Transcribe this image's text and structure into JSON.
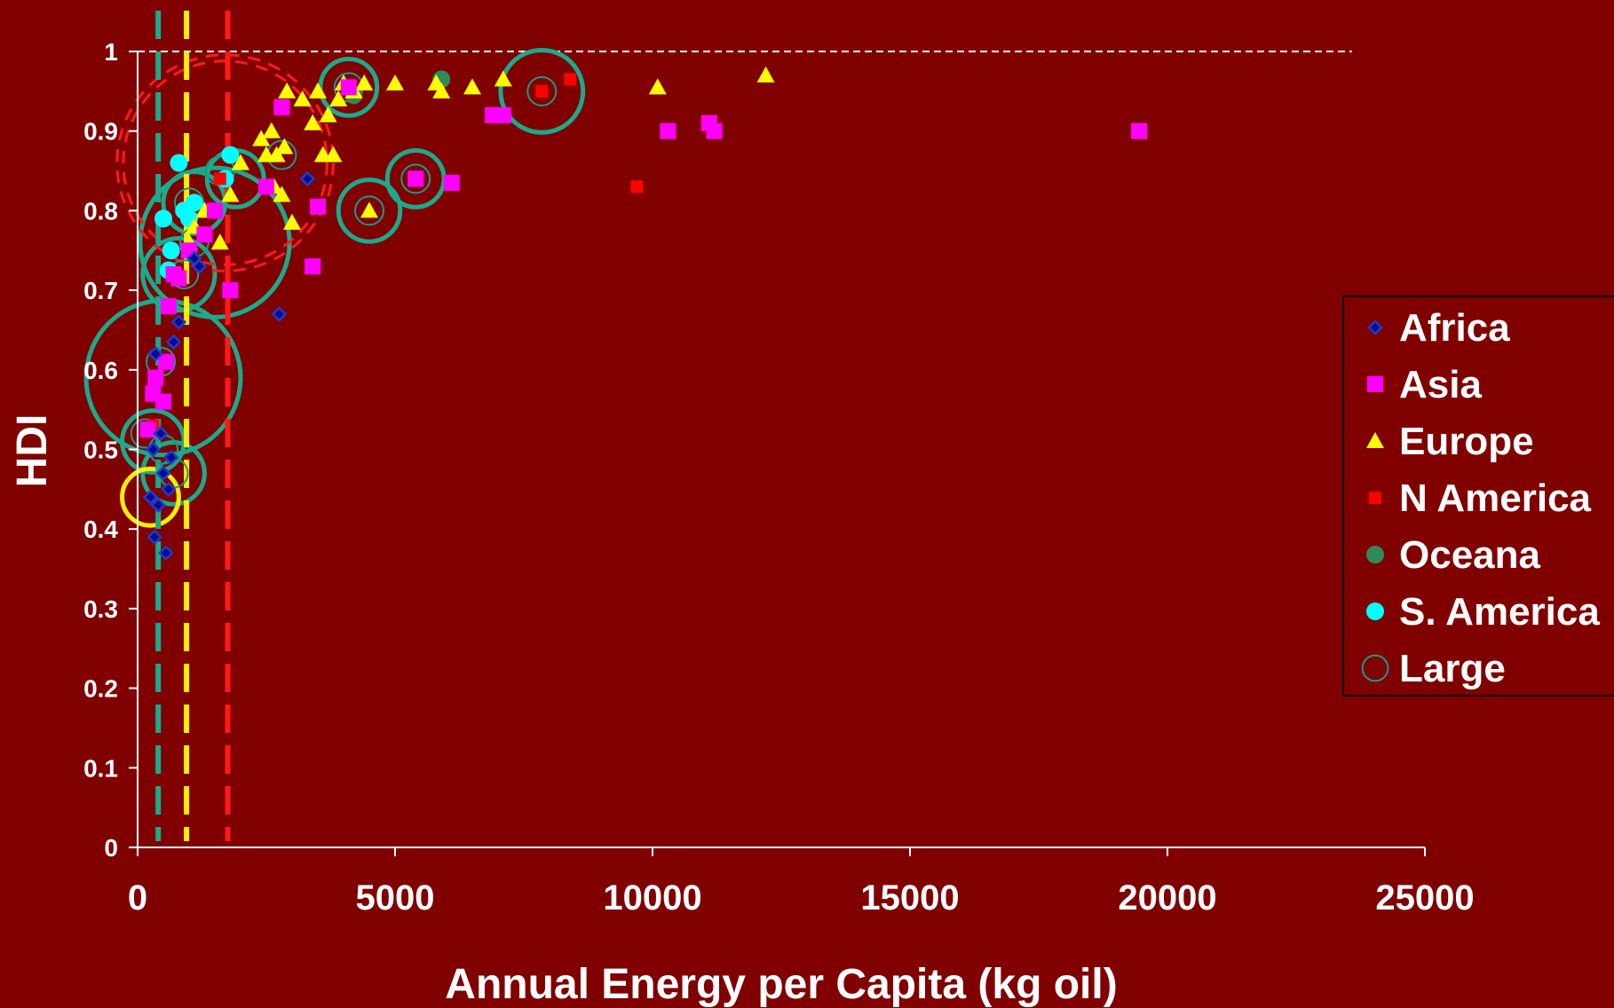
{
  "colors": {
    "background": "#800000",
    "africa": "#1e3cc8",
    "africa_fill": "#0a0a8c",
    "asia": "#ff00ff",
    "europe": "#ffff00",
    "n_america": "#ff0000",
    "oceana": "#2e8b57",
    "s_america": "#00ffff",
    "large": "#1a9a8a",
    "threshold_green": "#1aaa8c",
    "threshold_yellow": "#ffee00",
    "threshold_red": "#ff1a1a"
  },
  "chart_data": {
    "type": "scatter",
    "xlabel": "Annual Energy per Capita (kg oil)",
    "ylabel": "HDI",
    "xlim": [
      0,
      25000
    ],
    "ylim": [
      0,
      1
    ],
    "x_ticks": [
      "0",
      "5000",
      "10000",
      "15000",
      "20000",
      "25000"
    ],
    "y_ticks": [
      "0",
      "0.1",
      "0.2",
      "0.3",
      "0.4",
      "0.5",
      "0.6",
      "0.7",
      "0.8",
      "0.9",
      "1"
    ],
    "reference_line_y": 1,
    "legend_position": "right",
    "series": [
      {
        "name": "Africa",
        "marker": "diamond",
        "points": [
          [
            250,
            0.44
          ],
          [
            300,
            0.5
          ],
          [
            330,
            0.39
          ],
          [
            350,
            0.62
          ],
          [
            400,
            0.43
          ],
          [
            450,
            0.52
          ],
          [
            500,
            0.47
          ],
          [
            550,
            0.37
          ],
          [
            600,
            0.45
          ],
          [
            650,
            0.49
          ],
          [
            700,
            0.635
          ],
          [
            800,
            0.66
          ],
          [
            1100,
            0.74
          ],
          [
            1200,
            0.73
          ],
          [
            2750,
            0.67
          ],
          [
            3300,
            0.84
          ]
        ]
      },
      {
        "name": "Asia",
        "marker": "square",
        "points": [
          [
            200,
            0.525
          ],
          [
            300,
            0.57
          ],
          [
            350,
            0.59
          ],
          [
            500,
            0.56
          ],
          [
            550,
            0.61
          ],
          [
            600,
            0.68
          ],
          [
            700,
            0.72
          ],
          [
            800,
            0.715
          ],
          [
            1000,
            0.75
          ],
          [
            1300,
            0.77
          ],
          [
            1500,
            0.8
          ],
          [
            1800,
            0.7
          ],
          [
            2500,
            0.83
          ],
          [
            2800,
            0.93
          ],
          [
            3400,
            0.73
          ],
          [
            3500,
            0.805
          ],
          [
            4100,
            0.955
          ],
          [
            5400,
            0.84
          ],
          [
            6100,
            0.835
          ],
          [
            6900,
            0.92
          ],
          [
            7100,
            0.92
          ],
          [
            10300,
            0.9
          ],
          [
            11100,
            0.91
          ],
          [
            11200,
            0.9
          ],
          [
            19450,
            0.9
          ]
        ]
      },
      {
        "name": "Europe",
        "marker": "triangle",
        "points": [
          [
            1000,
            0.76
          ],
          [
            1100,
            0.78
          ],
          [
            1300,
            0.8
          ],
          [
            1600,
            0.76
          ],
          [
            1800,
            0.82
          ],
          [
            2000,
            0.86
          ],
          [
            2400,
            0.89
          ],
          [
            2500,
            0.87
          ],
          [
            2600,
            0.9
          ],
          [
            2650,
            0.83
          ],
          [
            2700,
            0.87
          ],
          [
            2800,
            0.82
          ],
          [
            2850,
            0.88
          ],
          [
            2900,
            0.95
          ],
          [
            3000,
            0.785
          ],
          [
            3200,
            0.94
          ],
          [
            3400,
            0.91
          ],
          [
            3500,
            0.95
          ],
          [
            3600,
            0.87
          ],
          [
            3700,
            0.92
          ],
          [
            3800,
            0.87
          ],
          [
            3900,
            0.94
          ],
          [
            4000,
            0.96
          ],
          [
            4200,
            0.95
          ],
          [
            4400,
            0.96
          ],
          [
            4500,
            0.8
          ],
          [
            5000,
            0.96
          ],
          [
            5800,
            0.96
          ],
          [
            5900,
            0.95
          ],
          [
            6500,
            0.955
          ],
          [
            7100,
            0.965
          ],
          [
            10100,
            0.955
          ],
          [
            12200,
            0.97
          ]
        ]
      },
      {
        "name": "N America",
        "marker": "square",
        "points": [
          [
            300,
            0.53
          ],
          [
            1600,
            0.84
          ],
          [
            7850,
            0.95
          ],
          [
            8400,
            0.965
          ],
          [
            9700,
            0.83
          ]
        ]
      },
      {
        "name": "Oceana",
        "marker": "circle",
        "points": [
          [
            4200,
            0.945
          ],
          [
            5900,
            0.965
          ]
        ]
      },
      {
        "name": "S. America",
        "marker": "circle",
        "points": [
          [
            500,
            0.79
          ],
          [
            600,
            0.725
          ],
          [
            650,
            0.75
          ],
          [
            800,
            0.86
          ],
          [
            900,
            0.8
          ],
          [
            1000,
            0.79
          ],
          [
            1100,
            0.81
          ],
          [
            1700,
            0.84
          ],
          [
            1800,
            0.87
          ]
        ]
      },
      {
        "name": "Large",
        "marker": "open-circle",
        "points": [
          [
            150,
            0.52
          ],
          [
            450,
            0.61
          ],
          [
            500,
            0.5
          ],
          [
            700,
            0.47
          ],
          [
            900,
            0.72
          ],
          [
            1000,
            0.81
          ],
          [
            1100,
            0.76
          ],
          [
            1600,
            0.85
          ],
          [
            2800,
            0.87
          ],
          [
            4100,
            0.955
          ],
          [
            4500,
            0.8
          ],
          [
            5400,
            0.84
          ],
          [
            7850,
            0.95
          ]
        ]
      }
    ],
    "highlight_circles": [
      {
        "color": "green",
        "x": 500,
        "y": 0.59,
        "r_kg": 1500
      },
      {
        "color": "green",
        "x": 1500,
        "y": 0.76,
        "r_kg": 1450
      },
      {
        "color": "green",
        "x": 300,
        "y": 0.51,
        "r_kg": 600
      },
      {
        "color": "green",
        "x": 700,
        "y": 0.47,
        "r_kg": 600
      },
      {
        "color": "green",
        "x": 800,
        "y": 0.72,
        "r_kg": 700
      },
      {
        "color": "green",
        "x": 1100,
        "y": 0.81,
        "r_kg": 600
      },
      {
        "color": "green",
        "x": 1900,
        "y": 0.84,
        "r_kg": 550
      },
      {
        "color": "green",
        "x": 4100,
        "y": 0.955,
        "r_kg": 550
      },
      {
        "color": "green",
        "x": 4500,
        "y": 0.8,
        "r_kg": 600
      },
      {
        "color": "green",
        "x": 5400,
        "y": 0.84,
        "r_kg": 550
      },
      {
        "color": "green",
        "x": 7850,
        "y": 0.95,
        "r_kg": 800
      },
      {
        "color": "yellow",
        "x": 250,
        "y": 0.44,
        "r_kg": 550
      }
    ],
    "threshold_lines_x": [
      {
        "color": "green",
        "x": 400
      },
      {
        "color": "yellow",
        "x": 950
      },
      {
        "color": "red",
        "x": 1750
      }
    ],
    "dashed_arc": {
      "cx": 1700,
      "cy": 0.86,
      "r_kg": 2100
    }
  }
}
